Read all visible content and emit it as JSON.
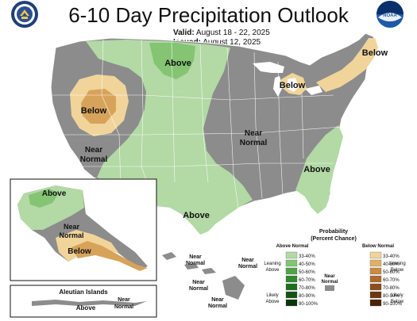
{
  "title": "6-10 Day Precipitation Outlook",
  "valid_label": "Valid:",
  "valid_dates": "August 18 - 22, 2025",
  "issued_label": "Issued:",
  "issued_dates": "August 12, 2025",
  "logos": {
    "left": "doc-seal-icon",
    "right": "noaa-logo-icon",
    "right_text": "NOAA"
  },
  "map_labels": {
    "above_north": "Above",
    "below_northeast": "Below",
    "below_greatlakes": "Below",
    "below_west": "Below",
    "near_normal_west": [
      "Near",
      "Normal"
    ],
    "near_normal_central": [
      "Near",
      "Normal"
    ],
    "above_southeast": "Above",
    "above_south": "Above"
  },
  "alaska_labels": {
    "above": "Above",
    "near_normal": [
      "Near",
      "Normal"
    ],
    "below": "Below"
  },
  "aleutian": {
    "title": "Aleutian Islands",
    "above": "Above",
    "near_normal": [
      "Near",
      "Normal"
    ]
  },
  "hawaii_labels": {
    "nn1": [
      "Near",
      "Normal"
    ],
    "nn2": [
      "Near",
      "Normal"
    ],
    "nn3": [
      "Near",
      "Normal"
    ],
    "nn4": [
      "Near",
      "Normal"
    ]
  },
  "legend": {
    "title": [
      "Probability",
      "(Percent Chance)"
    ],
    "above_header": "Above Normal",
    "below_header": "Below Normal",
    "near_label": [
      "Near",
      "Normal"
    ],
    "leaning_above": [
      "Leaning",
      "Above"
    ],
    "likely_above": [
      "Likely",
      "Above"
    ],
    "leaning_below": [
      "Leaning",
      "Below"
    ],
    "likely_below": [
      "Likely",
      "Below"
    ],
    "above_bins": [
      "33-40%",
      "40-50%",
      "50-60%",
      "60-70%",
      "70-80%",
      "80-90%",
      "90-100%"
    ],
    "below_bins": [
      "33-40%",
      "40-50%",
      "50-60%",
      "60-70%",
      "70-80%",
      "80-90%",
      "90-100%"
    ],
    "above_colors": [
      "#b3d9a5",
      "#84c473",
      "#4fa446",
      "#2e8b2e",
      "#1f6e1f",
      "#145214",
      "#0a350a"
    ],
    "below_colors": [
      "#f0d49a",
      "#e0b06a",
      "#c98a42",
      "#b06a2c",
      "#8e4e1c",
      "#6e3610",
      "#4a2206"
    ],
    "near_color": "#8c8c8c"
  },
  "colors": {
    "near_normal": "#8c8c8c",
    "above_33": "#b3d9a5",
    "above_40": "#84c473",
    "below_33": "#f0d49a",
    "below_40": "#d7a35a",
    "water": "#ffffff",
    "border": "#ffffff"
  }
}
